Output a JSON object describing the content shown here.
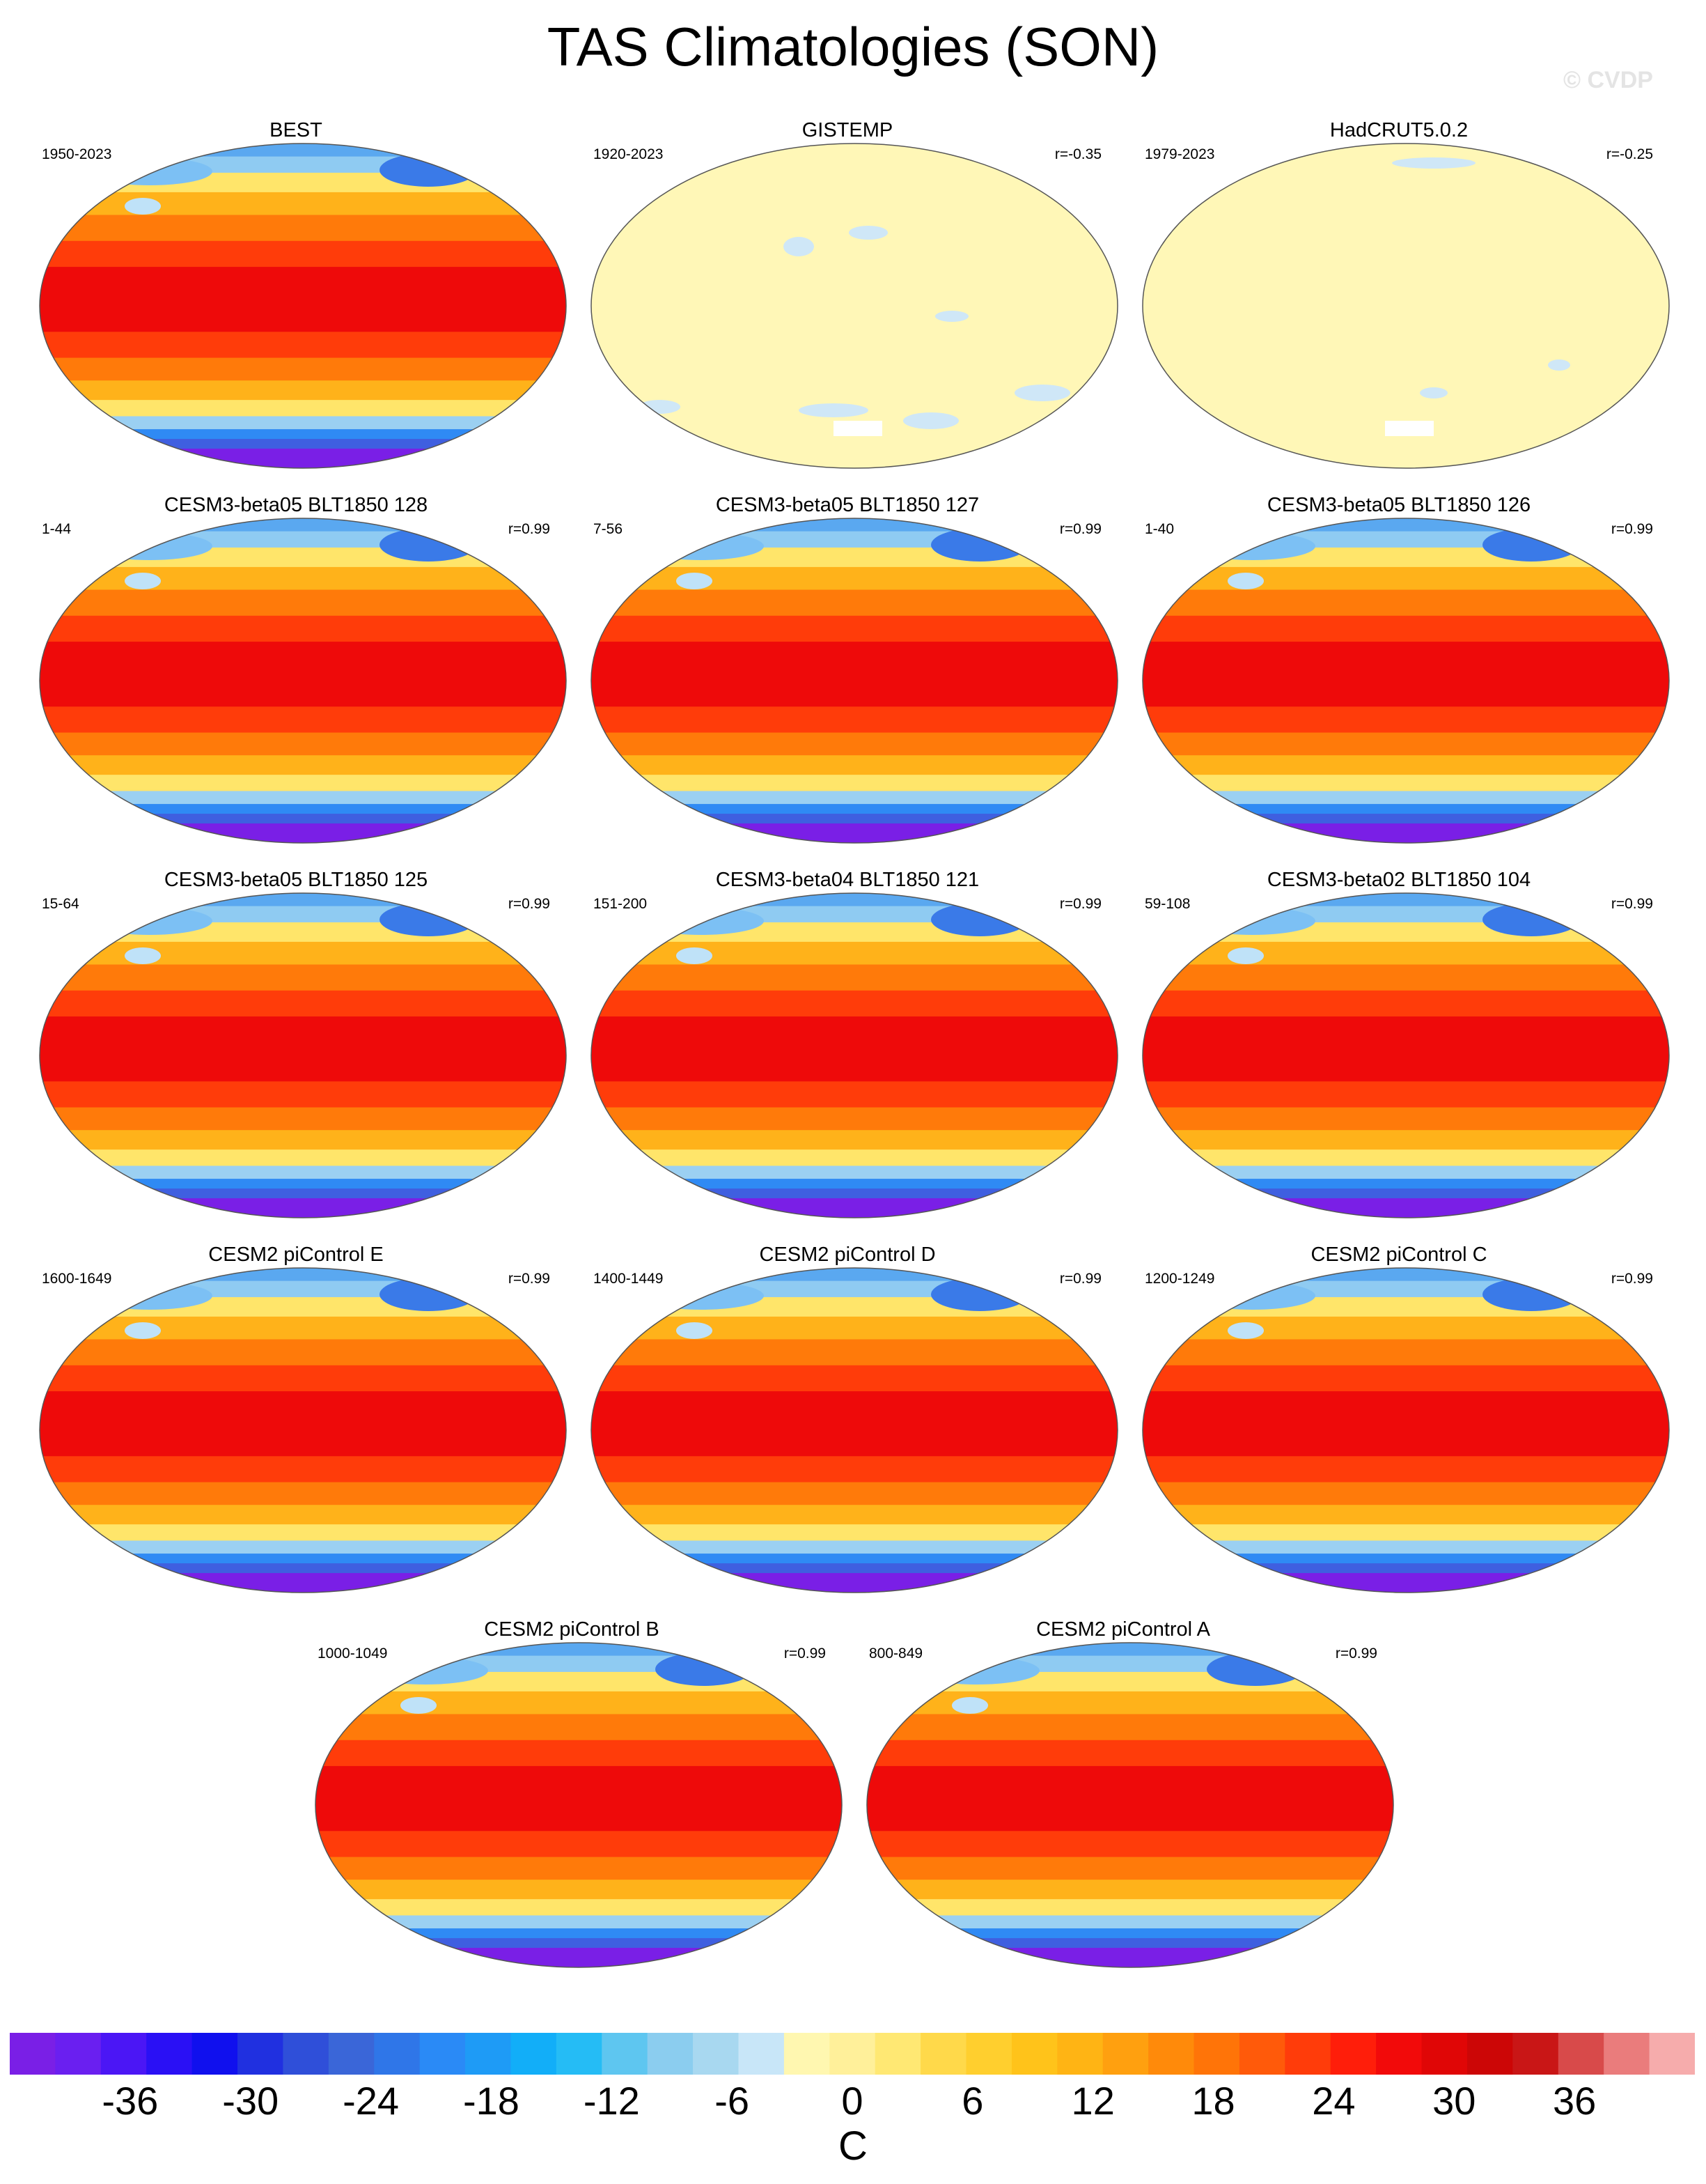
{
  "figure": {
    "title": "TAS Climatologies (SON)",
    "watermark": "© CVDP"
  },
  "panels": [
    {
      "title": "BEST",
      "years": "1950-2023",
      "corr": "",
      "style": "full"
    },
    {
      "title": "GISTEMP",
      "years": "1920-2023",
      "corr": "r=-0.35",
      "style": "pale"
    },
    {
      "title": "HadCRUT5.0.2",
      "years": "1979-2023",
      "corr": "r=-0.25",
      "style": "pale2"
    },
    {
      "title": "CESM3-beta05 BLT1850 128",
      "years": "1-44",
      "corr": "r=0.99",
      "style": "full"
    },
    {
      "title": "CESM3-beta05 BLT1850 127",
      "years": "7-56",
      "corr": "r=0.99",
      "style": "full"
    },
    {
      "title": "CESM3-beta05 BLT1850 126",
      "years": "1-40",
      "corr": "r=0.99",
      "style": "full"
    },
    {
      "title": "CESM3-beta05 BLT1850 125",
      "years": "15-64",
      "corr": "r=0.99",
      "style": "full"
    },
    {
      "title": "CESM3-beta04 BLT1850 121",
      "years": "151-200",
      "corr": "r=0.99",
      "style": "full"
    },
    {
      "title": "CESM3-beta02 BLT1850 104",
      "years": "59-108",
      "corr": "r=0.99",
      "style": "full"
    },
    {
      "title": "CESM2 piControl E",
      "years": "1600-1649",
      "corr": "r=0.99",
      "style": "full"
    },
    {
      "title": "CESM2 piControl D",
      "years": "1400-1449",
      "corr": "r=0.99",
      "style": "full"
    },
    {
      "title": "CESM2 piControl C",
      "years": "1200-1249",
      "corr": "r=0.99",
      "style": "full"
    },
    {
      "title": "CESM2 piControl B",
      "years": "1000-1049",
      "corr": "r=0.99",
      "style": "full"
    },
    {
      "title": "CESM2 piControl A",
      "years": "800-849",
      "corr": "r=0.99",
      "style": "full"
    }
  ],
  "colorbar": {
    "unit": "C",
    "tick_labels": [
      "-36",
      "-30",
      "-24",
      "-18",
      "-12",
      "-6",
      "0",
      "6",
      "12",
      "18",
      "24",
      "30",
      "36"
    ],
    "colors": [
      "#7a1fe6",
      "#6a1ff0",
      "#4b16f5",
      "#2a10f5",
      "#1010ee",
      "#2030e0",
      "#2f4fd9",
      "#3a66d8",
      "#2f76e8",
      "#2a8af6",
      "#1e9bf6",
      "#12aef8",
      "#25bcf5",
      "#5ec6f0",
      "#8bcdef",
      "#a8d8f0",
      "#c8e6f8",
      "#fff7b0",
      "#fff09a",
      "#ffe873",
      "#ffd94a",
      "#ffcf2e",
      "#ffc31a",
      "#ffb414",
      "#ffa00f",
      "#ff8a0a",
      "#ff7408",
      "#ff5a0a",
      "#ff3c0a",
      "#ff1e0a",
      "#f20a0a",
      "#e00606",
      "#cc0606",
      "#c91616",
      "#d84a4a",
      "#ea7c7c",
      "#f6acac"
    ]
  }
}
